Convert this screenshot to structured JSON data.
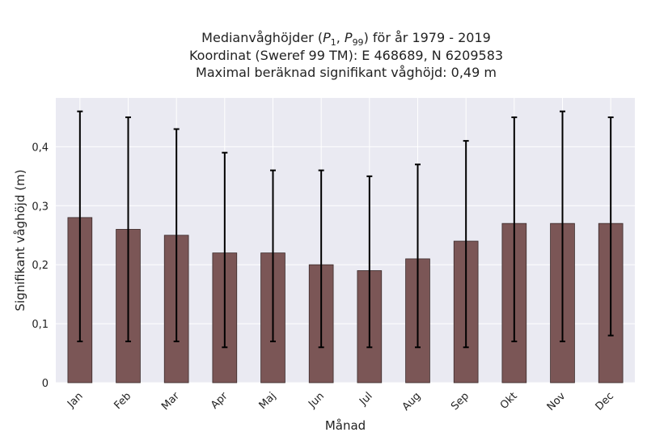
{
  "chart_data": {
    "type": "bar",
    "title_lines": [
      "Medianvåghöjder (P1, P99) för år 1979 - 2019",
      "Koordinat (Sweref 99 TM): E 468689, N 6209583",
      "Maximal beräknad signifikant våghöjd: 0,49 m"
    ],
    "title_math": {
      "prefix": "Medianvåghöjder (",
      "p1_base": "P",
      "p1_sub": "1",
      "sep": ", ",
      "p99_base": "P",
      "p99_sub": "99",
      "suffix": ") för år 1979 - 2019"
    },
    "xlabel": "Månad",
    "ylabel": "Signifikant våghöjd (m)",
    "categories": [
      "Jan",
      "Feb",
      "Mar",
      "Apr",
      "Maj",
      "Jun",
      "Jul",
      "Aug",
      "Sep",
      "Okt",
      "Nov",
      "Dec"
    ],
    "values": [
      0.28,
      0.26,
      0.25,
      0.22,
      0.22,
      0.2,
      0.19,
      0.21,
      0.24,
      0.27,
      0.27,
      0.27
    ],
    "p1": [
      0.07,
      0.07,
      0.07,
      0.06,
      0.07,
      0.06,
      0.06,
      0.06,
      0.06,
      0.07,
      0.07,
      0.08
    ],
    "p99": [
      0.46,
      0.45,
      0.43,
      0.39,
      0.36,
      0.36,
      0.35,
      0.37,
      0.41,
      0.45,
      0.46,
      0.45
    ],
    "yticks": [
      0,
      0.1,
      0.2,
      0.3,
      0.4
    ],
    "ytick_labels": [
      "0",
      "0,1",
      "0,2",
      "0,3",
      "0,4"
    ],
    "ylim": [
      0,
      0.49
    ],
    "grid": true,
    "colors": {
      "bar": "#7b5656",
      "bar_edge": "#3a2a2a",
      "error": "#000000",
      "plot_bg": "#eaeaf2",
      "grid": "#ffffff"
    }
  }
}
